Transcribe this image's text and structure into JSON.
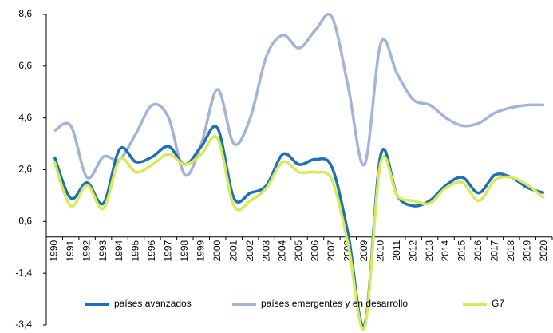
{
  "chart_data": {
    "type": "line",
    "categories": [
      "1990",
      "1991",
      "1992",
      "1993",
      "1994",
      "1995",
      "1996",
      "1997",
      "1998",
      "1999",
      "2000",
      "2001",
      "2002",
      "2003",
      "2004",
      "2005",
      "2006",
      "2007",
      "2008",
      "2009",
      "2010",
      "2011",
      "2012",
      "2013",
      "2014",
      "2015",
      "2016",
      "2017",
      "2018",
      "2019",
      "2020"
    ],
    "series": [
      {
        "name": "países avanzados",
        "color": "#1f6fb5",
        "values": [
          3.1,
          1.5,
          2.1,
          1.3,
          3.4,
          2.9,
          3.1,
          3.5,
          2.8,
          3.5,
          4.2,
          1.5,
          1.7,
          2.0,
          3.2,
          2.8,
          3.0,
          2.7,
          0.1,
          -3.4,
          3.2,
          1.6,
          1.2,
          1.4,
          2.0,
          2.3,
          1.7,
          2.4,
          2.3,
          1.9,
          1.7
        ]
      },
      {
        "name": "países emergentes y en desarrollo",
        "color": "#a3b4d6",
        "values": [
          4.1,
          4.3,
          2.3,
          3.1,
          3.0,
          4.0,
          5.1,
          4.6,
          2.4,
          3.6,
          5.7,
          3.6,
          4.6,
          7.0,
          7.8,
          7.3,
          8.0,
          8.5,
          5.8,
          2.8,
          7.5,
          6.3,
          5.3,
          5.1,
          4.6,
          4.3,
          4.4,
          4.8,
          5.0,
          5.1,
          5.1
        ]
      },
      {
        "name": "G7",
        "color": "#d6ea5a",
        "values": [
          2.9,
          1.2,
          2.0,
          1.1,
          3.0,
          2.5,
          2.8,
          3.2,
          2.8,
          3.2,
          3.8,
          1.2,
          1.4,
          1.9,
          2.9,
          2.5,
          2.5,
          2.2,
          -0.3,
          -3.5,
          2.9,
          1.6,
          1.4,
          1.3,
          1.9,
          2.1,
          1.4,
          2.2,
          2.3,
          2.0,
          1.5
        ]
      }
    ],
    "ylim": [
      -3.4,
      8.6
    ],
    "yticks": [
      {
        "value": -3.4,
        "label": "-3,4"
      },
      {
        "value": -1.4,
        "label": "-1,4"
      },
      {
        "value": 0.6,
        "label": "0,6"
      },
      {
        "value": 2.6,
        "label": "2,6"
      },
      {
        "value": 4.6,
        "label": "4,6"
      },
      {
        "value": 6.6,
        "label": "6,6"
      },
      {
        "value": 8.6,
        "label": "8,6"
      }
    ],
    "grid": false,
    "legend": "bottom"
  }
}
